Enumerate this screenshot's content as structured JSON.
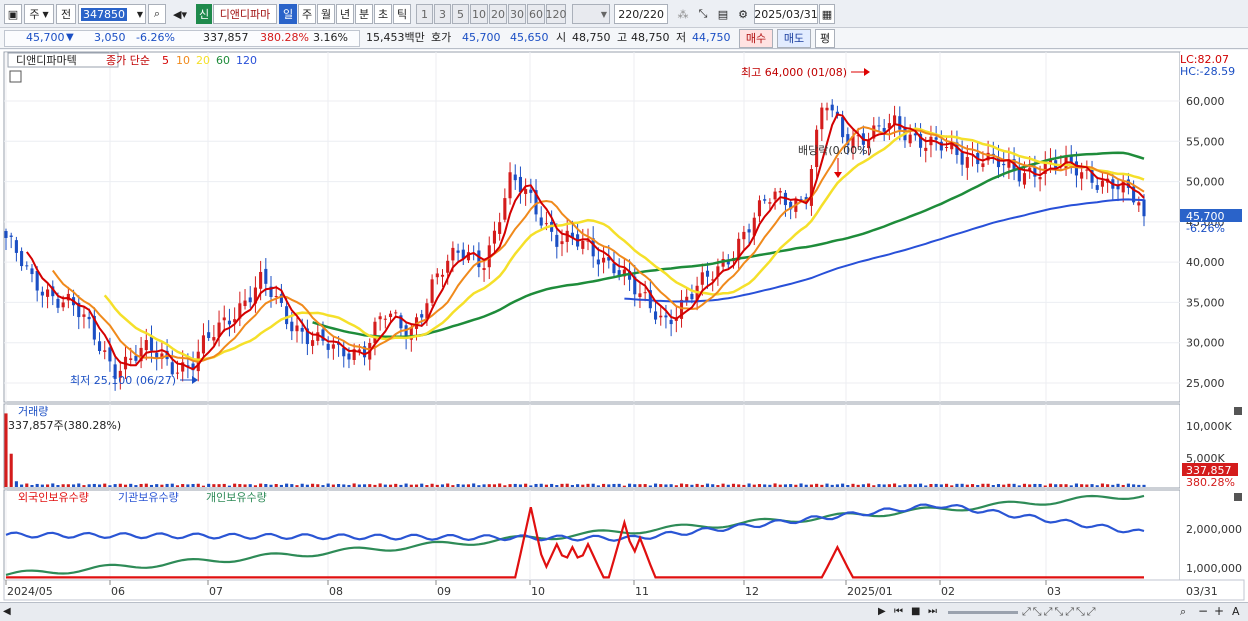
{
  "toolbar": {
    "period_type": "주",
    "prev_label": "전",
    "stock_code": "347850",
    "market_badge": "신",
    "stock_name": "디앤디파마",
    "periods": [
      "일",
      "주",
      "월",
      "년",
      "분",
      "초",
      "틱"
    ],
    "active_period": "일",
    "intervals": [
      "1",
      "3",
      "5",
      "10",
      "20",
      "30",
      "60",
      "120"
    ],
    "count": "220/220",
    "date": "2025/03/31"
  },
  "quote": {
    "price": "45,700",
    "change": "3,050",
    "change_pct": "-6.26%",
    "volume": "337,857",
    "volume_ratio": "380.28%",
    "turnover_pct": "3.16%",
    "trade_value": "15,453백만",
    "ask_label": "호가",
    "ask": "45,700",
    "bid": "45,650",
    "open_label": "시",
    "open": "48,750",
    "high_label": "고",
    "high": "48,750",
    "low_label": "저",
    "low": "44,750",
    "buy_label": "매수",
    "sell_label": "매도",
    "avg_label": "평"
  },
  "price_pane": {
    "legend_name": "디앤디파마텍",
    "legend_main": "종가 단순",
    "ma_labels": [
      "5",
      "10",
      "20",
      "60",
      "120"
    ],
    "lc": "LC:82.07",
    "hc": "HC:-28.59",
    "y_ticks": [
      "60,000",
      "55,000",
      "50,000",
      "45,000",
      "40,000",
      "35,000",
      "30,000",
      "25,000"
    ],
    "current_price_tag": "45,700",
    "current_pct_tag": "-6.26%",
    "high_note": "최고 64,000 (01/08)",
    "low_note": "최저 25,100 (06/27)",
    "dividend_note": "배당락(0.00%)"
  },
  "volume_pane": {
    "title": "거래량",
    "value_note": "337,857주(380.28%)",
    "y_ticks": [
      "10,000K",
      "5,000K"
    ],
    "tag_value": "337,857",
    "tag_pct": "380.28%"
  },
  "holdings_pane": {
    "legend": [
      "외국인보유수량",
      "기관보유수량",
      "개인보유수량"
    ],
    "y_ticks": [
      "2,000,000",
      "1,000,000"
    ]
  },
  "x_axis": {
    "labels": [
      "2024/05",
      "06",
      "07",
      "08",
      "09",
      "10",
      "11",
      "12",
      "2025/01",
      "02",
      "03"
    ],
    "right_label": "03/31"
  },
  "colors": {
    "up": "#d41c1c",
    "down": "#1b4fc4",
    "ma5": "#d40000",
    "ma10": "#f08a1c",
    "ma20": "#f5e02a",
    "ma60": "#1e8c3a",
    "ma120": "#2850d8",
    "foreign": "#e01010",
    "institution": "#2a55d4",
    "individual": "#2e8b57"
  }
}
